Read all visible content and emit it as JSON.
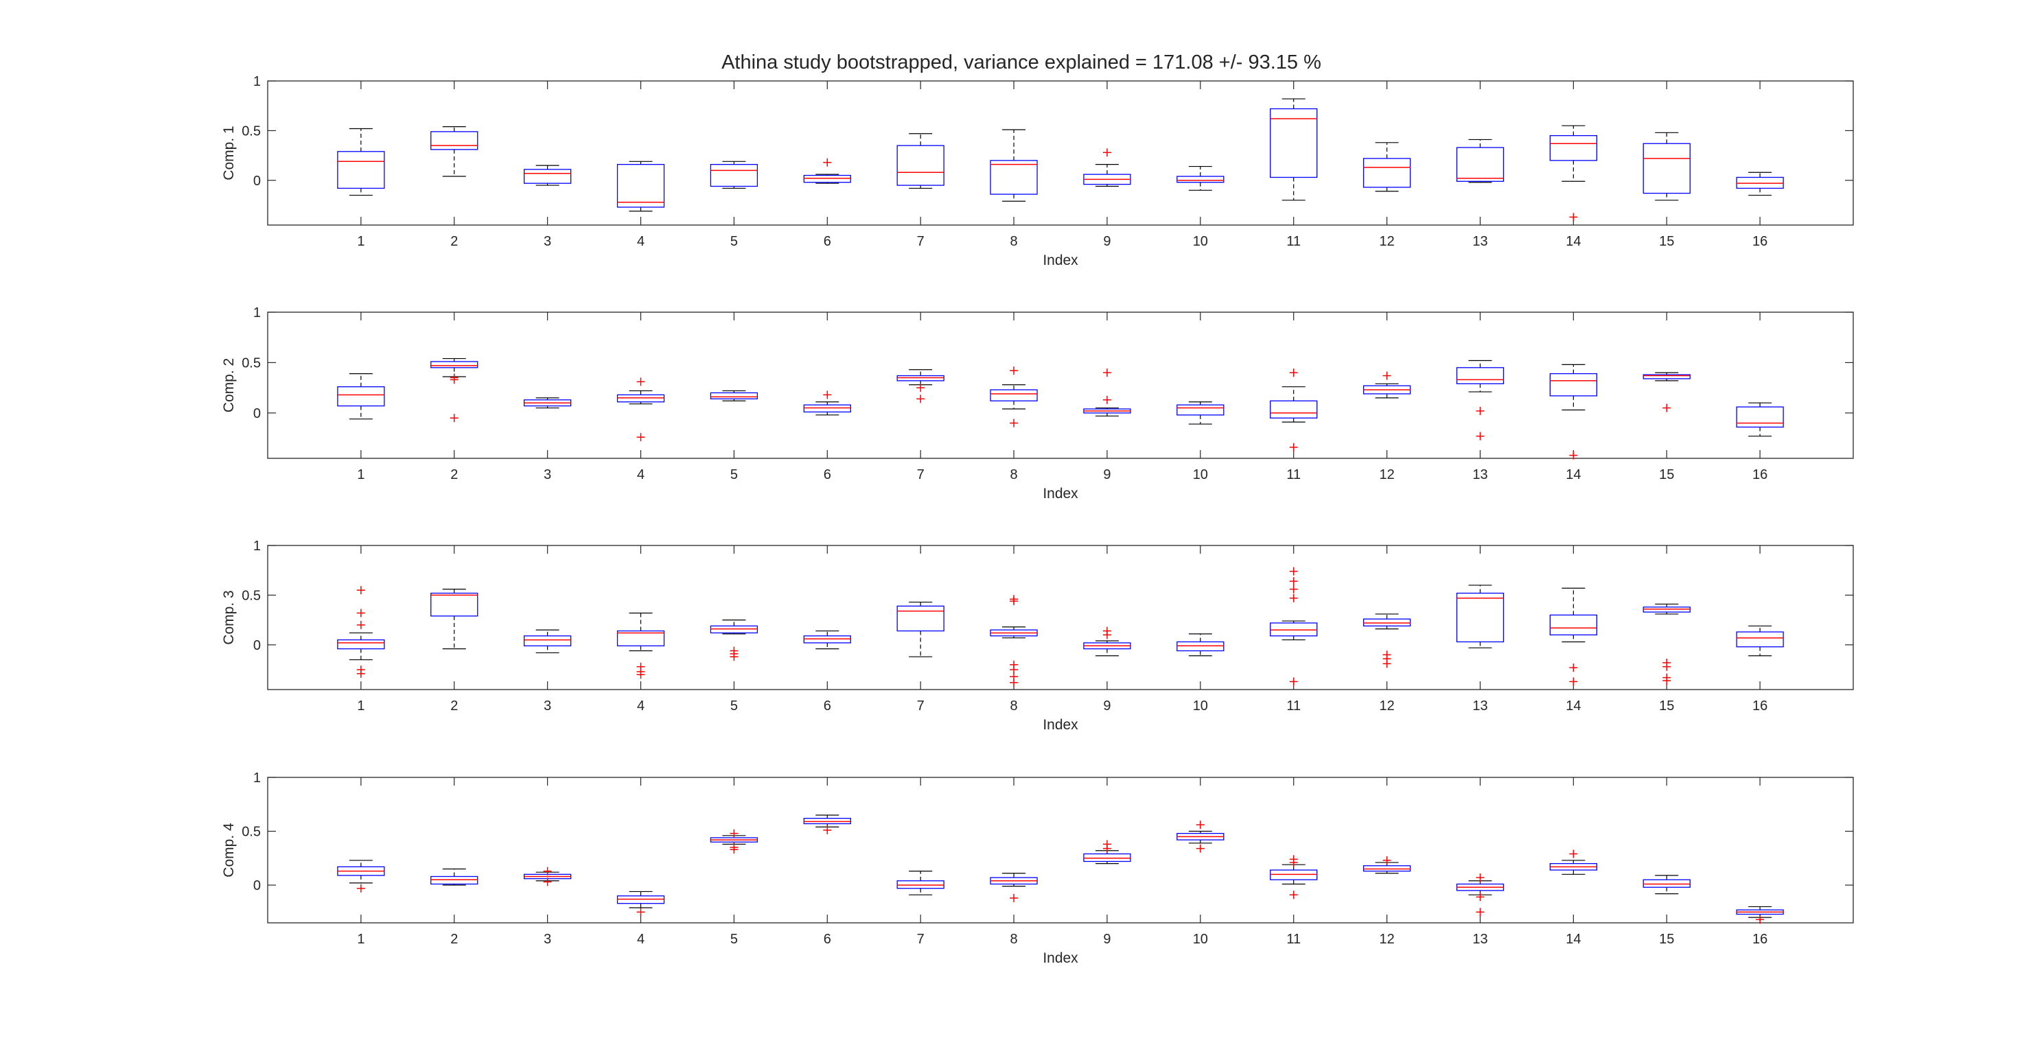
{
  "figure": {
    "title": "Athina study bootstrapped, variance explained = 171.08 +/- 93.15 %"
  },
  "colors": {
    "box": "#0000ff",
    "median": "#ff0000",
    "whisker": "#000000",
    "outlier": "#ff0000",
    "axes": "#262626"
  },
  "chart_data": [
    {
      "type": "box",
      "xlabel": "Index",
      "ylabel": "Comp. 1",
      "ylim": [
        -0.45,
        1
      ],
      "yticks": [
        "0",
        "0.5",
        "1"
      ],
      "categories": [
        "1",
        "2",
        "3",
        "4",
        "5",
        "6",
        "7",
        "8",
        "9",
        "10",
        "11",
        "12",
        "13",
        "14",
        "15",
        "16"
      ],
      "boxes": [
        {
          "q1": -0.08,
          "median": 0.19,
          "q3": 0.29,
          "whisker_low": -0.15,
          "whisker_high": 0.52,
          "outliers": []
        },
        {
          "q1": 0.31,
          "median": 0.35,
          "q3": 0.49,
          "whisker_low": 0.04,
          "whisker_high": 0.54,
          "outliers": []
        },
        {
          "q1": -0.03,
          "median": 0.07,
          "q3": 0.11,
          "whisker_low": -0.05,
          "whisker_high": 0.15,
          "outliers": []
        },
        {
          "q1": -0.27,
          "median": -0.22,
          "q3": 0.16,
          "whisker_low": -0.31,
          "whisker_high": 0.19,
          "outliers": []
        },
        {
          "q1": -0.06,
          "median": 0.1,
          "q3": 0.16,
          "whisker_low": -0.08,
          "whisker_high": 0.19,
          "outliers": []
        },
        {
          "q1": -0.02,
          "median": 0.02,
          "q3": 0.05,
          "whisker_low": -0.03,
          "whisker_high": 0.06,
          "outliers": [
            0.18
          ]
        },
        {
          "q1": -0.05,
          "median": 0.08,
          "q3": 0.35,
          "whisker_low": -0.08,
          "whisker_high": 0.47,
          "outliers": []
        },
        {
          "q1": -0.14,
          "median": 0.16,
          "q3": 0.2,
          "whisker_low": -0.21,
          "whisker_high": 0.51,
          "outliers": []
        },
        {
          "q1": -0.04,
          "median": 0.01,
          "q3": 0.06,
          "whisker_low": -0.06,
          "whisker_high": 0.16,
          "outliers": [
            0.28
          ]
        },
        {
          "q1": -0.02,
          "median": 0.0,
          "q3": 0.04,
          "whisker_low": -0.1,
          "whisker_high": 0.14,
          "outliers": []
        },
        {
          "q1": 0.03,
          "median": 0.62,
          "q3": 0.72,
          "whisker_low": -0.2,
          "whisker_high": 0.82,
          "outliers": []
        },
        {
          "q1": -0.07,
          "median": 0.13,
          "q3": 0.22,
          "whisker_low": -0.11,
          "whisker_high": 0.38,
          "outliers": []
        },
        {
          "q1": -0.01,
          "median": 0.02,
          "q3": 0.33,
          "whisker_low": -0.02,
          "whisker_high": 0.41,
          "outliers": []
        },
        {
          "q1": 0.2,
          "median": 0.37,
          "q3": 0.45,
          "whisker_low": -0.01,
          "whisker_high": 0.55,
          "outliers": [
            -0.37
          ]
        },
        {
          "q1": -0.13,
          "median": 0.22,
          "q3": 0.37,
          "whisker_low": -0.2,
          "whisker_high": 0.48,
          "outliers": []
        },
        {
          "q1": -0.08,
          "median": -0.03,
          "q3": 0.03,
          "whisker_low": -0.15,
          "whisker_high": 0.08,
          "outliers": []
        }
      ]
    },
    {
      "type": "box",
      "xlabel": "Index",
      "ylabel": "Comp. 2",
      "ylim": [
        -0.45,
        1
      ],
      "yticks": [
        "0",
        "0.5",
        "1"
      ],
      "categories": [
        "1",
        "2",
        "3",
        "4",
        "5",
        "6",
        "7",
        "8",
        "9",
        "10",
        "11",
        "12",
        "13",
        "14",
        "15",
        "16"
      ],
      "boxes": [
        {
          "q1": 0.07,
          "median": 0.18,
          "q3": 0.26,
          "whisker_low": -0.06,
          "whisker_high": 0.39,
          "outliers": []
        },
        {
          "q1": 0.45,
          "median": 0.47,
          "q3": 0.51,
          "whisker_low": 0.36,
          "whisker_high": 0.54,
          "outliers": [
            0.33,
            0.35,
            -0.05
          ]
        },
        {
          "q1": 0.07,
          "median": 0.1,
          "q3": 0.13,
          "whisker_low": 0.05,
          "whisker_high": 0.15,
          "outliers": []
        },
        {
          "q1": 0.11,
          "median": 0.15,
          "q3": 0.18,
          "whisker_low": 0.09,
          "whisker_high": 0.22,
          "outliers": [
            0.31,
            -0.24
          ]
        },
        {
          "q1": 0.14,
          "median": 0.16,
          "q3": 0.2,
          "whisker_low": 0.12,
          "whisker_high": 0.22,
          "outliers": []
        },
        {
          "q1": 0.01,
          "median": 0.05,
          "q3": 0.08,
          "whisker_low": -0.02,
          "whisker_high": 0.11,
          "outliers": [
            0.18
          ]
        },
        {
          "q1": 0.32,
          "median": 0.35,
          "q3": 0.37,
          "whisker_low": 0.28,
          "whisker_high": 0.43,
          "outliers": [
            0.25,
            0.14
          ]
        },
        {
          "q1": 0.12,
          "median": 0.19,
          "q3": 0.23,
          "whisker_low": 0.04,
          "whisker_high": 0.28,
          "outliers": [
            0.42,
            -0.1
          ]
        },
        {
          "q1": 0.0,
          "median": 0.02,
          "q3": 0.04,
          "whisker_low": -0.03,
          "whisker_high": 0.05,
          "outliers": [
            0.4,
            0.13
          ]
        },
        {
          "q1": -0.02,
          "median": 0.05,
          "q3": 0.08,
          "whisker_low": -0.11,
          "whisker_high": 0.11,
          "outliers": []
        },
        {
          "q1": -0.05,
          "median": 0.0,
          "q3": 0.12,
          "whisker_low": -0.09,
          "whisker_high": 0.26,
          "outliers": [
            0.4,
            -0.34
          ]
        },
        {
          "q1": 0.19,
          "median": 0.23,
          "q3": 0.27,
          "whisker_low": 0.15,
          "whisker_high": 0.29,
          "outliers": [
            0.37
          ]
        },
        {
          "q1": 0.29,
          "median": 0.33,
          "q3": 0.45,
          "whisker_low": 0.21,
          "whisker_high": 0.52,
          "outliers": [
            0.02,
            -0.23
          ]
        },
        {
          "q1": 0.17,
          "median": 0.32,
          "q3": 0.39,
          "whisker_low": 0.03,
          "whisker_high": 0.48,
          "outliers": [
            -0.42
          ]
        },
        {
          "q1": 0.34,
          "median": 0.37,
          "q3": 0.38,
          "whisker_low": 0.32,
          "whisker_high": 0.4,
          "outliers": [
            0.05
          ]
        },
        {
          "q1": -0.14,
          "median": -0.1,
          "q3": 0.06,
          "whisker_low": -0.23,
          "whisker_high": 0.1,
          "outliers": []
        }
      ]
    },
    {
      "type": "box",
      "xlabel": "Index",
      "ylabel": "Comp. 3",
      "ylim": [
        -0.45,
        1
      ],
      "yticks": [
        "0",
        "0.5",
        "1"
      ],
      "categories": [
        "1",
        "2",
        "3",
        "4",
        "5",
        "6",
        "7",
        "8",
        "9",
        "10",
        "11",
        "12",
        "13",
        "14",
        "15",
        "16"
      ],
      "boxes": [
        {
          "q1": -0.04,
          "median": 0.02,
          "q3": 0.05,
          "whisker_low": -0.15,
          "whisker_high": 0.12,
          "outliers": [
            0.55,
            0.32,
            0.2,
            -0.25,
            -0.29
          ]
        },
        {
          "q1": 0.29,
          "median": 0.5,
          "q3": 0.52,
          "whisker_low": -0.04,
          "whisker_high": 0.56,
          "outliers": []
        },
        {
          "q1": -0.01,
          "median": 0.05,
          "q3": 0.09,
          "whisker_low": -0.08,
          "whisker_high": 0.15,
          "outliers": []
        },
        {
          "q1": -0.01,
          "median": 0.12,
          "q3": 0.14,
          "whisker_low": -0.06,
          "whisker_high": 0.32,
          "outliers": [
            -0.22,
            -0.27,
            -0.3
          ]
        },
        {
          "q1": 0.12,
          "median": 0.16,
          "q3": 0.19,
          "whisker_low": 0.11,
          "whisker_high": 0.25,
          "outliers": [
            -0.06,
            -0.09,
            -0.12
          ]
        },
        {
          "q1": 0.02,
          "median": 0.06,
          "q3": 0.09,
          "whisker_low": -0.04,
          "whisker_high": 0.14,
          "outliers": []
        },
        {
          "q1": 0.14,
          "median": 0.34,
          "q3": 0.39,
          "whisker_low": -0.12,
          "whisker_high": 0.43,
          "outliers": []
        },
        {
          "q1": 0.09,
          "median": 0.12,
          "q3": 0.15,
          "whisker_low": 0.07,
          "whisker_high": 0.18,
          "outliers": [
            0.46,
            0.44,
            -0.2,
            -0.25,
            -0.32,
            -0.38
          ]
        },
        {
          "q1": -0.04,
          "median": -0.01,
          "q3": 0.02,
          "whisker_low": -0.11,
          "whisker_high": 0.04,
          "outliers": [
            0.14,
            0.1
          ]
        },
        {
          "q1": -0.06,
          "median": -0.01,
          "q3": 0.03,
          "whisker_low": -0.11,
          "whisker_high": 0.11,
          "outliers": []
        },
        {
          "q1": 0.09,
          "median": 0.15,
          "q3": 0.22,
          "whisker_low": 0.05,
          "whisker_high": 0.24,
          "outliers": [
            0.74,
            0.64,
            0.56,
            0.47,
            -0.37
          ]
        },
        {
          "q1": 0.19,
          "median": 0.22,
          "q3": 0.26,
          "whisker_low": 0.16,
          "whisker_high": 0.31,
          "outliers": [
            -0.1,
            -0.14,
            -0.19
          ]
        },
        {
          "q1": 0.03,
          "median": 0.47,
          "q3": 0.52,
          "whisker_low": -0.03,
          "whisker_high": 0.6,
          "outliers": []
        },
        {
          "q1": 0.1,
          "median": 0.17,
          "q3": 0.3,
          "whisker_low": 0.03,
          "whisker_high": 0.57,
          "outliers": [
            -0.23,
            -0.37
          ]
        },
        {
          "q1": 0.33,
          "median": 0.36,
          "q3": 0.38,
          "whisker_low": 0.31,
          "whisker_high": 0.41,
          "outliers": [
            -0.18,
            -0.22,
            -0.33,
            -0.36
          ]
        },
        {
          "q1": -0.02,
          "median": 0.07,
          "q3": 0.13,
          "whisker_low": -0.11,
          "whisker_high": 0.19,
          "outliers": []
        }
      ]
    },
    {
      "type": "box",
      "xlabel": "Index",
      "ylabel": "Comp. 4",
      "ylim": [
        -0.35,
        1
      ],
      "yticks": [
        "0",
        "0.5",
        "1"
      ],
      "categories": [
        "1",
        "2",
        "3",
        "4",
        "5",
        "6",
        "7",
        "8",
        "9",
        "10",
        "11",
        "12",
        "13",
        "14",
        "15",
        "16"
      ],
      "boxes": [
        {
          "q1": 0.09,
          "median": 0.13,
          "q3": 0.17,
          "whisker_low": 0.02,
          "whisker_high": 0.23,
          "outliers": [
            -0.03
          ]
        },
        {
          "q1": 0.01,
          "median": 0.05,
          "q3": 0.08,
          "whisker_low": 0.0,
          "whisker_high": 0.15,
          "outliers": []
        },
        {
          "q1": 0.06,
          "median": 0.08,
          "q3": 0.1,
          "whisker_low": 0.04,
          "whisker_high": 0.12,
          "outliers": [
            0.13,
            0.03
          ]
        },
        {
          "q1": -0.17,
          "median": -0.13,
          "q3": -0.1,
          "whisker_low": -0.21,
          "whisker_high": -0.06,
          "outliers": [
            -0.25
          ]
        },
        {
          "q1": 0.4,
          "median": 0.42,
          "q3": 0.44,
          "whisker_low": 0.38,
          "whisker_high": 0.46,
          "outliers": [
            0.48,
            0.35,
            0.33
          ]
        },
        {
          "q1": 0.57,
          "median": 0.59,
          "q3": 0.62,
          "whisker_low": 0.54,
          "whisker_high": 0.65,
          "outliers": [
            0.51
          ]
        },
        {
          "q1": -0.03,
          "median": 0.0,
          "q3": 0.04,
          "whisker_low": -0.09,
          "whisker_high": 0.13,
          "outliers": []
        },
        {
          "q1": 0.01,
          "median": 0.04,
          "q3": 0.07,
          "whisker_low": -0.01,
          "whisker_high": 0.11,
          "outliers": [
            -0.12
          ]
        },
        {
          "q1": 0.22,
          "median": 0.25,
          "q3": 0.29,
          "whisker_low": 0.2,
          "whisker_high": 0.32,
          "outliers": [
            0.38,
            0.34
          ]
        },
        {
          "q1": 0.42,
          "median": 0.45,
          "q3": 0.48,
          "whisker_low": 0.39,
          "whisker_high": 0.5,
          "outliers": [
            0.56,
            0.34
          ]
        },
        {
          "q1": 0.05,
          "median": 0.1,
          "q3": 0.14,
          "whisker_low": 0.01,
          "whisker_high": 0.19,
          "outliers": [
            0.24,
            0.21,
            -0.09
          ]
        },
        {
          "q1": 0.13,
          "median": 0.15,
          "q3": 0.18,
          "whisker_low": 0.11,
          "whisker_high": 0.21,
          "outliers": [
            0.23
          ]
        },
        {
          "q1": -0.05,
          "median": -0.02,
          "q3": 0.01,
          "whisker_low": -0.09,
          "whisker_high": 0.04,
          "outliers": [
            0.07,
            -0.11,
            -0.25
          ]
        },
        {
          "q1": 0.14,
          "median": 0.17,
          "q3": 0.2,
          "whisker_low": 0.1,
          "whisker_high": 0.23,
          "outliers": [
            0.29
          ]
        },
        {
          "q1": -0.02,
          "median": 0.01,
          "q3": 0.05,
          "whisker_low": -0.08,
          "whisker_high": 0.09,
          "outliers": []
        },
        {
          "q1": -0.27,
          "median": -0.25,
          "q3": -0.23,
          "whisker_low": -0.3,
          "whisker_high": -0.2,
          "outliers": [
            -0.32
          ]
        }
      ]
    }
  ]
}
